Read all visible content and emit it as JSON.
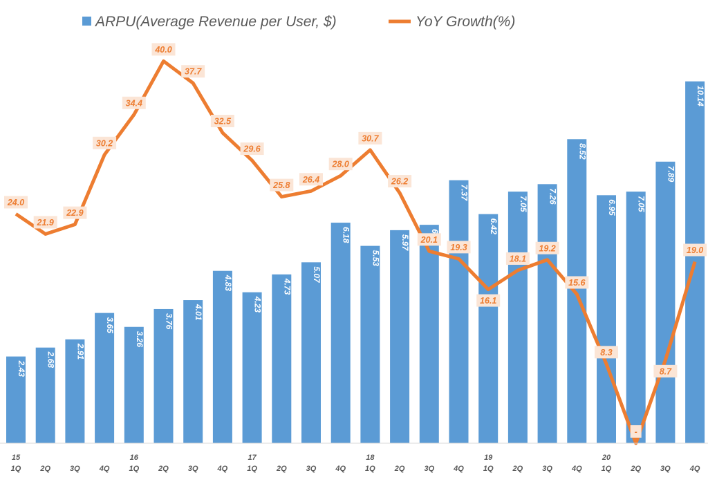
{
  "chart_data": {
    "type": "bar+line",
    "legend": {
      "placement": "top",
      "bar_series": "ARPU(Average Revenue per User, $)",
      "line_series": "YoY Growth(%)"
    },
    "years": [
      "15",
      "16",
      "17",
      "18",
      "19",
      "20"
    ],
    "quarters": [
      "1Q",
      "2Q",
      "3Q",
      "4Q",
      "1Q",
      "2Q",
      "3Q",
      "4Q",
      "1Q",
      "2Q",
      "3Q",
      "4Q",
      "1Q",
      "2Q",
      "3Q",
      "4Q",
      "1Q",
      "2Q",
      "3Q",
      "4Q",
      "1Q",
      "2Q",
      "3Q",
      "4Q"
    ],
    "series": [
      {
        "name": "ARPU(Average Revenue per User, $)",
        "type": "bar",
        "color": "#5b9bd5",
        "axis": "left",
        "values": [
          2.43,
          2.68,
          2.91,
          3.65,
          3.26,
          3.76,
          4.01,
          4.83,
          4.23,
          4.73,
          5.07,
          6.18,
          5.53,
          5.97,
          6.12,
          7.37,
          6.42,
          7.05,
          7.26,
          8.52,
          6.95,
          7.05,
          7.89,
          10.14
        ],
        "labels": [
          "2.43",
          "2.68",
          "2.91",
          "3.65",
          "3.26",
          "3.76",
          "4.01",
          "4.83",
          "4.23",
          "4.73",
          "5.07",
          "6.18",
          "5.53",
          "5.97",
          "6",
          "7.37",
          "6.42",
          "7.05",
          "7.26",
          "8.52",
          "6.95",
          "7.05",
          "7.89",
          "10.14"
        ]
      },
      {
        "name": "YoY Growth(%)",
        "type": "line",
        "color": "#ed7d31",
        "axis": "right",
        "values": [
          24.0,
          21.9,
          22.9,
          30.2,
          34.4,
          40.0,
          37.7,
          32.5,
          29.6,
          25.8,
          26.4,
          28.0,
          30.7,
          26.2,
          20.1,
          19.3,
          16.1,
          18.1,
          19.2,
          15.6,
          8.3,
          0,
          8.7,
          19.0
        ],
        "labels": [
          "24.0",
          "21.9",
          "22.9",
          "30.2",
          "34.4",
          "40.0",
          "37.7",
          "32.5",
          "29.6",
          "25.8",
          "26.4",
          "28.0",
          "30.7",
          "26.2",
          "20.1",
          "19.3",
          "16.1",
          "18.1",
          "19.2",
          "15.6",
          "8.3",
          "-",
          "8.7",
          "19.0"
        ]
      }
    ],
    "bar_ylim": [
      0,
      12.42
    ],
    "line_ylim": [
      0,
      46.4
    ],
    "grid": false,
    "label_box_color": "#fbe5d6"
  }
}
